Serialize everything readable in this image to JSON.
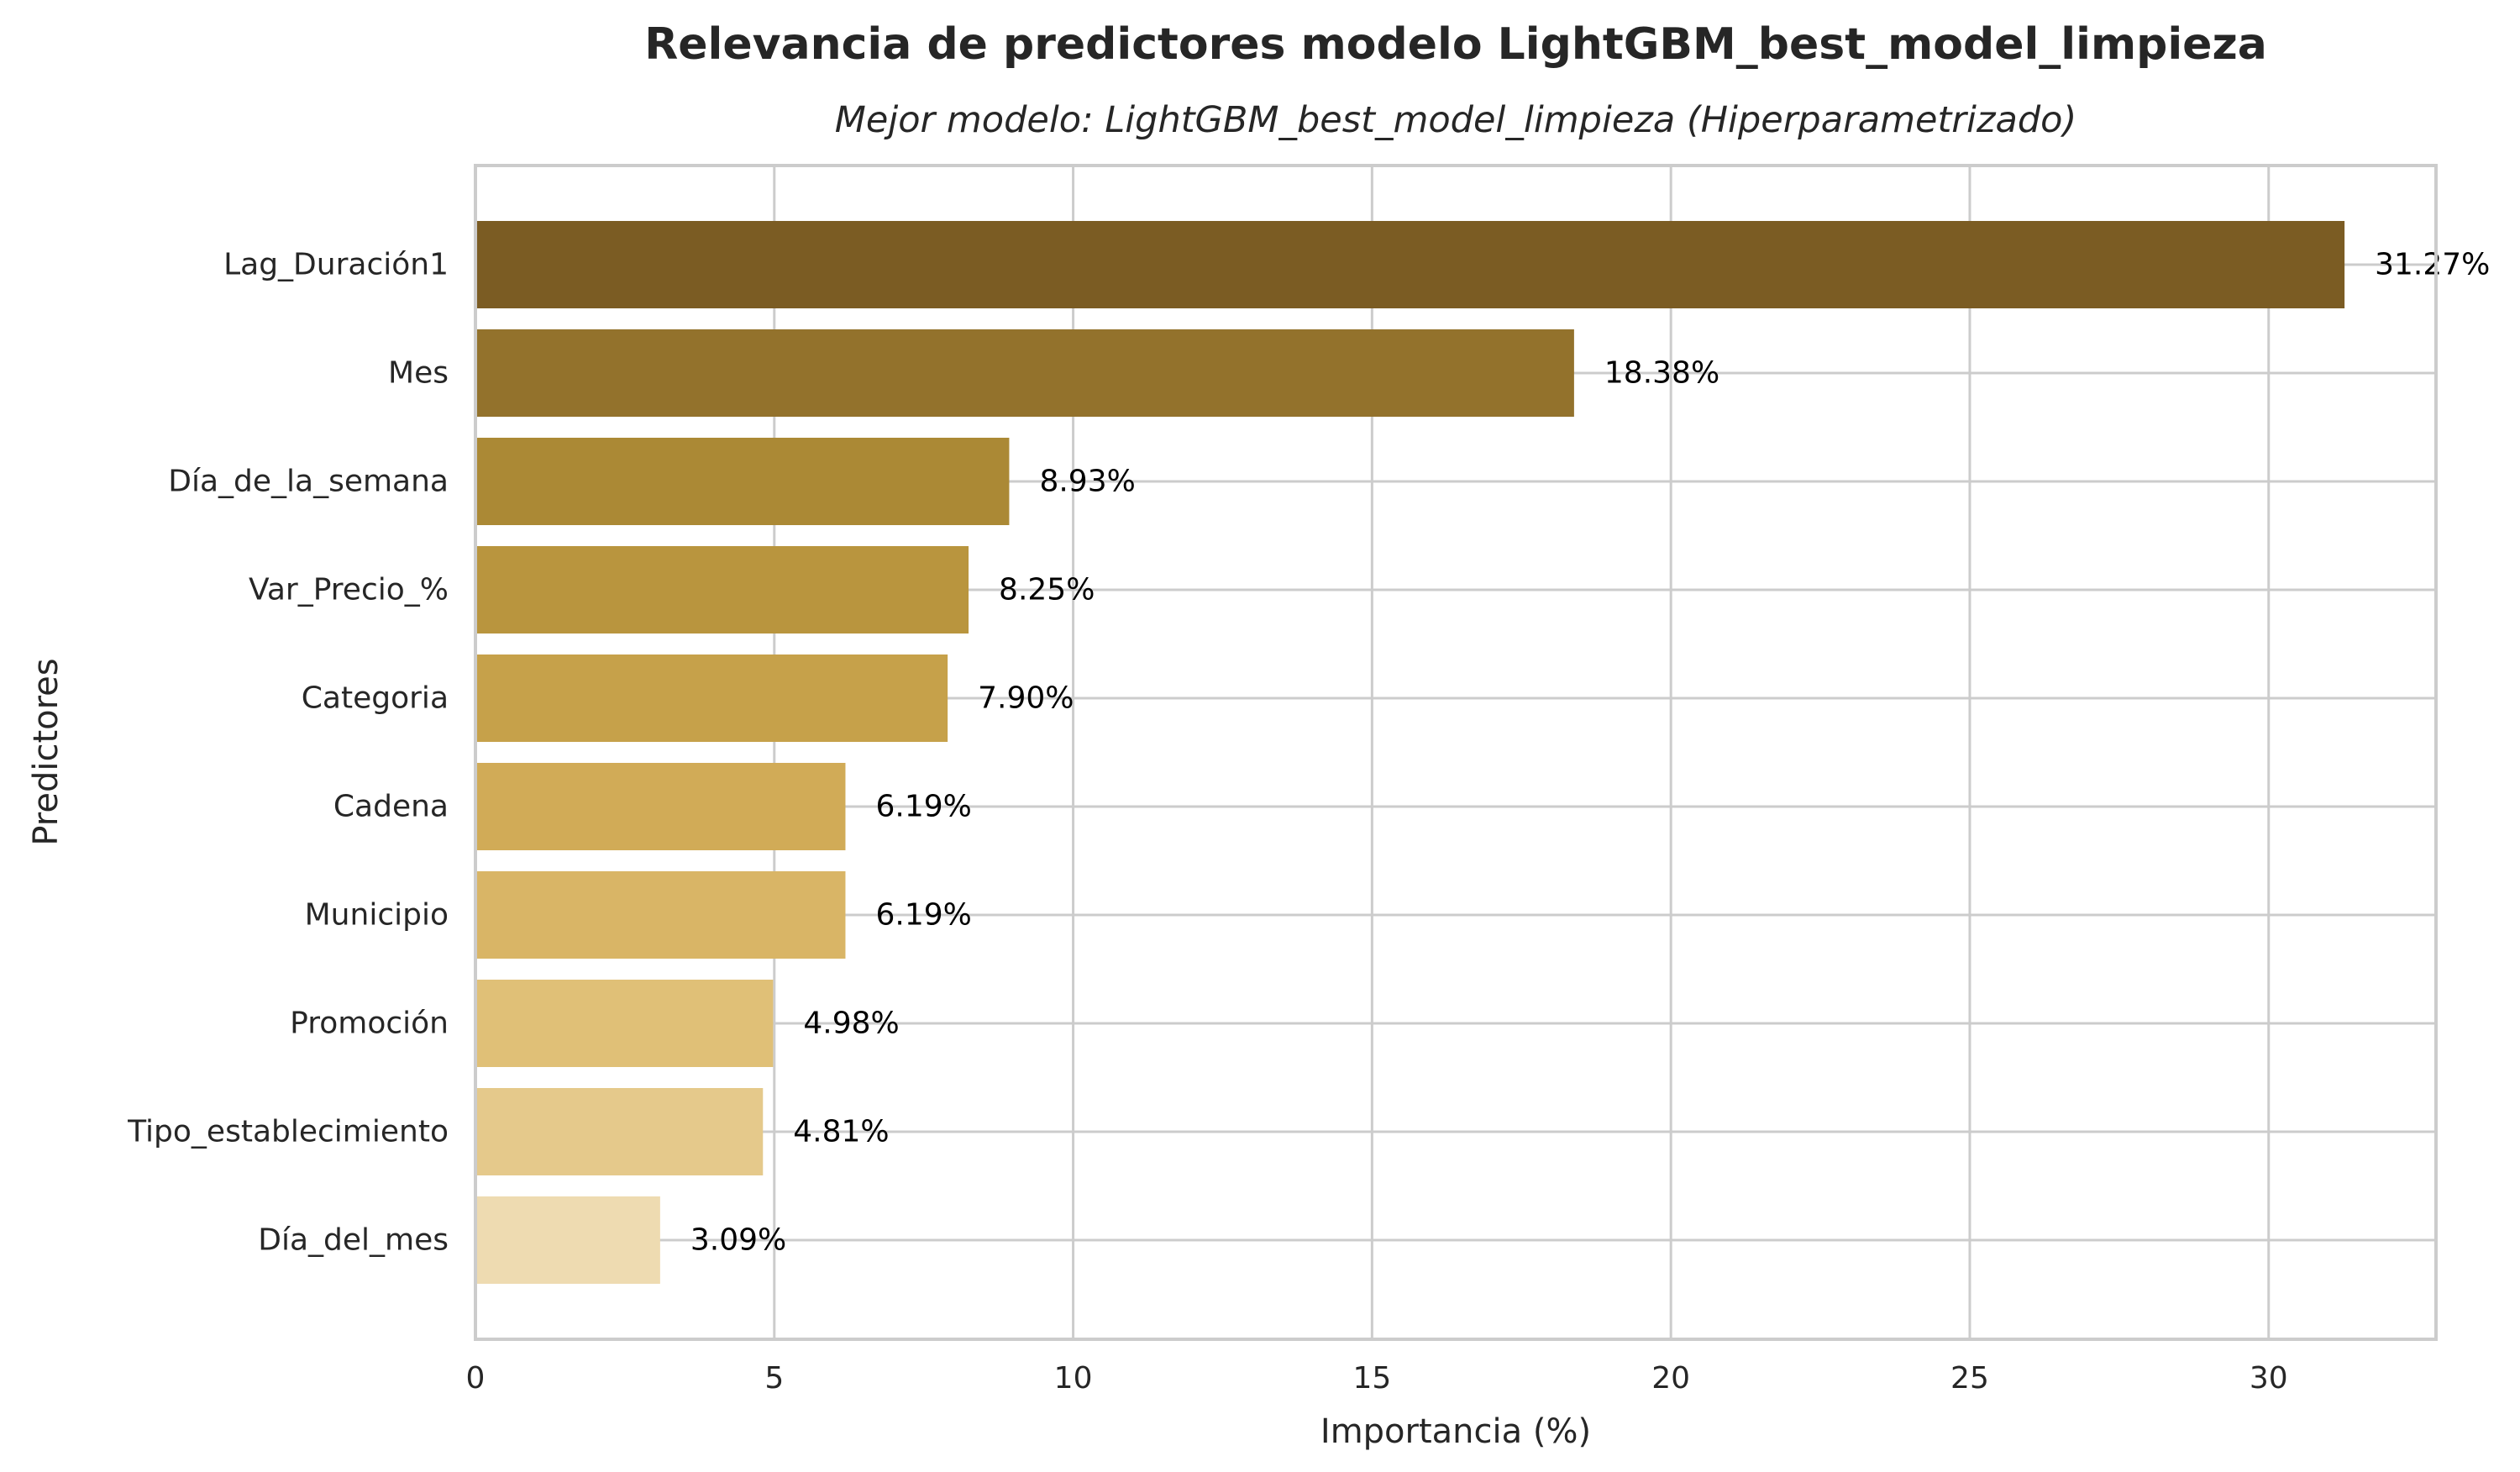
{
  "chart_data": {
    "type": "bar",
    "orientation": "horizontal",
    "title": "Relevancia de predictores modelo LightGBM_best_model_limpieza",
    "subtitle": "Mejor modelo: LightGBM_best_model_limpieza (Hiperparametrizado)",
    "xlabel": "Importancia (%)",
    "ylabel": "Predictores",
    "xlim": [
      0,
      32.8
    ],
    "xticks": [
      0,
      5,
      10,
      15,
      20,
      25,
      30
    ],
    "grid": true,
    "legend": "none",
    "categories": [
      "Lag_Duración1",
      "Mes",
      "Día_de_la_semana",
      "Var_Precio_%",
      "Categoria",
      "Cadena",
      "Municipio",
      "Promoción",
      "Tipo_establecimiento",
      "Día_del_mes"
    ],
    "values": [
      31.27,
      18.38,
      8.93,
      8.25,
      7.9,
      6.19,
      6.19,
      4.98,
      4.81,
      3.09
    ],
    "value_labels": [
      "31.27%",
      "18.38%",
      "8.93%",
      "8.25%",
      "7.90%",
      "6.19%",
      "6.19%",
      "4.98%",
      "4.81%",
      "3.09%"
    ],
    "colors": [
      "#7b5c23",
      "#93722c",
      "#ab8935",
      "#b9953e",
      "#c6a14a",
      "#d1ab57",
      "#d9b566",
      "#e0c077",
      "#e5c98b",
      "#eedbb1"
    ]
  }
}
